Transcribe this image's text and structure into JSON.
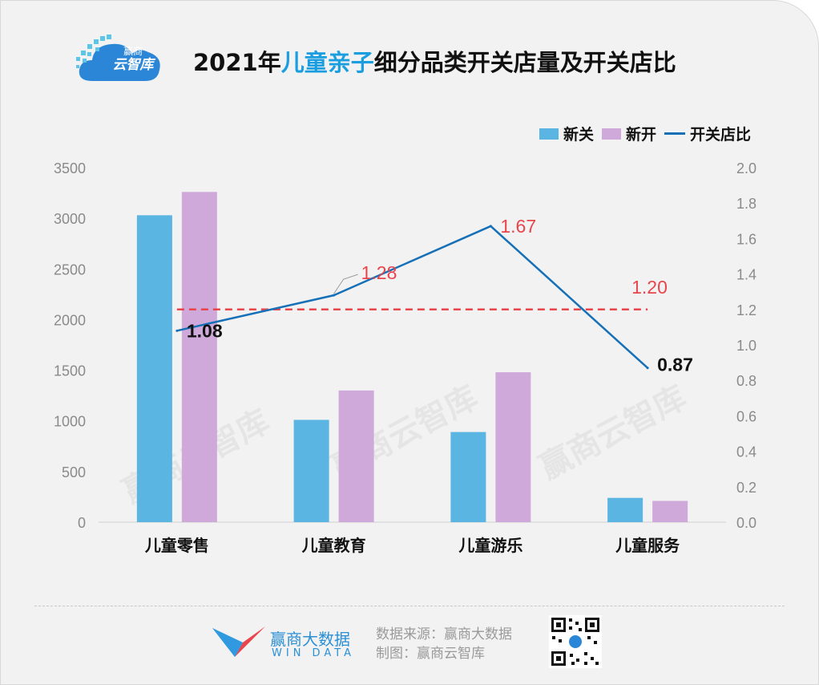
{
  "header": {
    "logo": {
      "line1": "赢商",
      "line2": "云智库"
    },
    "title_prefix": "2021年",
    "title_highlight": "儿童亲子",
    "title_suffix": "细分品类开关店量及开关店比"
  },
  "legend": {
    "close_label": "新关",
    "open_label": "新开",
    "ratio_label": "开关店比"
  },
  "colors": {
    "close": "#5ab5e3",
    "open": "#cfa9d9",
    "ratio_line": "#1670b8",
    "reference_line": "#e8454d",
    "highlight_label": "#e8454d"
  },
  "chart_data": {
    "type": "bar+line",
    "categories": [
      "儿童零售",
      "儿童教育",
      "儿童游乐",
      "儿童服务"
    ],
    "series": [
      {
        "name": "新关",
        "axis": "left",
        "values": [
          3030,
          1010,
          890,
          240
        ]
      },
      {
        "name": "新开",
        "axis": "left",
        "values": [
          3260,
          1300,
          1480,
          210
        ]
      },
      {
        "name": "开关店比",
        "axis": "right",
        "type": "line",
        "values": [
          1.08,
          1.28,
          1.67,
          0.87
        ],
        "labels": [
          "1.08",
          "1.28",
          "1.67",
          "0.87"
        ]
      }
    ],
    "reference_line": {
      "value": 1.2,
      "label": "1.20",
      "axis": "right"
    },
    "y_left": {
      "lim": [
        0,
        3500
      ],
      "ticks": [
        "0",
        "500",
        "1000",
        "1500",
        "2000",
        "2500",
        "3000",
        "3500"
      ]
    },
    "y_right": {
      "lim": [
        0,
        2.0
      ],
      "ticks": [
        "0.0",
        "0.2",
        "0.4",
        "0.6",
        "0.8",
        "1.0",
        "1.2",
        "1.4",
        "1.6",
        "1.8",
        "2.0"
      ]
    },
    "watermark": "赢商云智库",
    "legend_position": "top-right"
  },
  "footer": {
    "brand": "赢商大数据",
    "brand_en": "WIN DATA",
    "source": "数据来源：赢商大数据",
    "credit": "制图：赢商云智库"
  }
}
